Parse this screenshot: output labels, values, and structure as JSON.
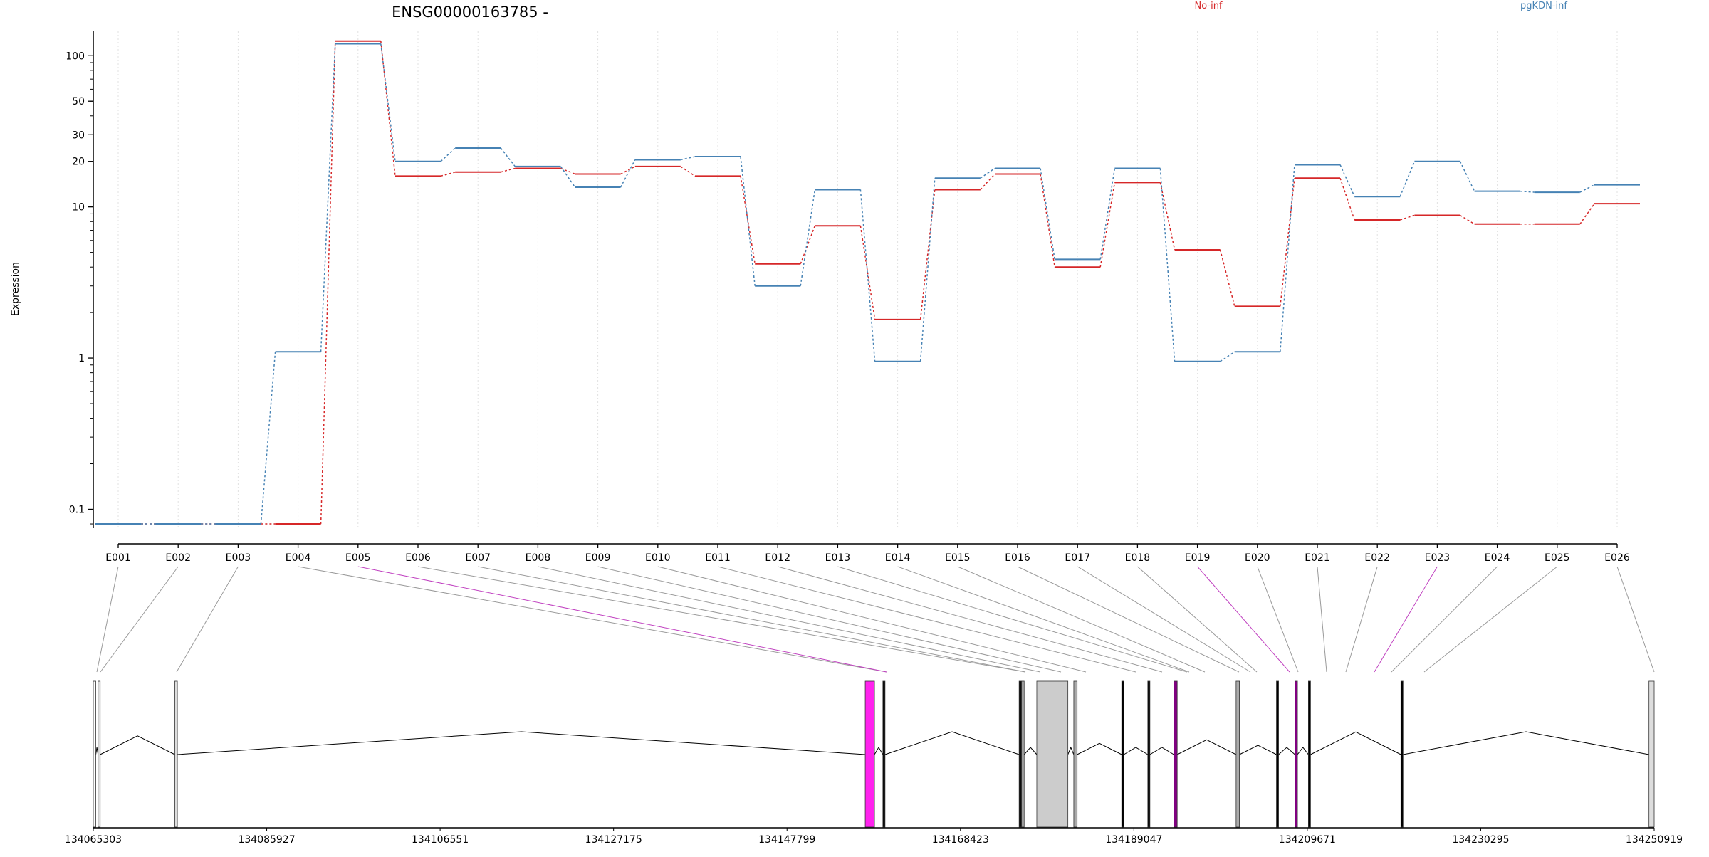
{
  "chart_data": {
    "type": "line",
    "title": "ENSG00000163785 -",
    "ylabel": "Expression",
    "xlabel": "",
    "y_scale": "log",
    "ylim": [
      0.075,
      145
    ],
    "yticks": [
      0.1,
      1,
      10,
      20,
      30,
      50,
      100
    ],
    "ytick_labels": [
      "0.1",
      "1",
      "10",
      "20",
      "30",
      "50",
      "100"
    ],
    "grid": "vertical dotted",
    "legend_position": "top",
    "categories": [
      "E001",
      "E002",
      "E003",
      "E004",
      "E005",
      "E006",
      "E007",
      "E008",
      "E009",
      "E010",
      "E011",
      "E012",
      "E013",
      "E014",
      "E015",
      "E016",
      "E017",
      "E018",
      "E019",
      "E020",
      "E021",
      "E022",
      "E023",
      "E024",
      "E025",
      "E026"
    ],
    "series": [
      {
        "name": "No-inf",
        "color": "#d62728",
        "values": [
          0.08,
          0.08,
          0.08,
          0.08,
          125,
          16,
          17,
          18,
          16.5,
          18.5,
          16,
          4.2,
          7.5,
          1.8,
          13,
          16.5,
          4,
          14.5,
          5.2,
          2.2,
          15.5,
          8.2,
          8.8,
          7.7,
          7.7,
          10.5
        ]
      },
      {
        "name": "pgKDN-inf",
        "color": "#4682b4",
        "values": [
          0.08,
          0.08,
          0.08,
          1.1,
          120,
          20,
          24.5,
          18.5,
          13.5,
          20.5,
          21.5,
          3,
          13,
          0.95,
          15.5,
          18,
          4.5,
          18,
          0.95,
          1.1,
          19,
          11.7,
          20,
          12.7,
          12.5,
          14
        ]
      }
    ],
    "gene_track": {
      "coordinate_ticks": [
        "134065303",
        "134085927",
        "134106551",
        "134127175",
        "134147799",
        "134168423",
        "134189047",
        "134209671",
        "134230295",
        "134250919"
      ],
      "coord_range": [
        134065303,
        134250919
      ],
      "exon_starts": [
        134065303,
        134065870,
        134075000,
        134157100,
        134159200,
        134175400,
        134175700,
        134177500,
        134181900,
        134187600,
        134190700,
        134193800,
        134201200,
        134206000,
        134208200,
        134209800,
        134220800,
        134250300
      ],
      "exon_ends": [
        134065600,
        134066000,
        134075300,
        134158200,
        134159400,
        134175650,
        134176000,
        134181200,
        134182300,
        134187800,
        134190900,
        134194200,
        134201600,
        134206200,
        134208500,
        134210000,
        134221000,
        134250919
      ],
      "exon_fills": [
        "#ffffff",
        "#dddddd",
        "#dddddd",
        "#ff22ee",
        "#000000",
        "#000000",
        "#aaaaaa",
        "#cccccc",
        "#aaaaaa",
        "#000000",
        "#000000",
        "#800080",
        "#aaaaaa",
        "#000000",
        "#800080",
        "#000000",
        "#000000",
        "#dddddd"
      ],
      "highlight_color": "#c040c0"
    }
  }
}
